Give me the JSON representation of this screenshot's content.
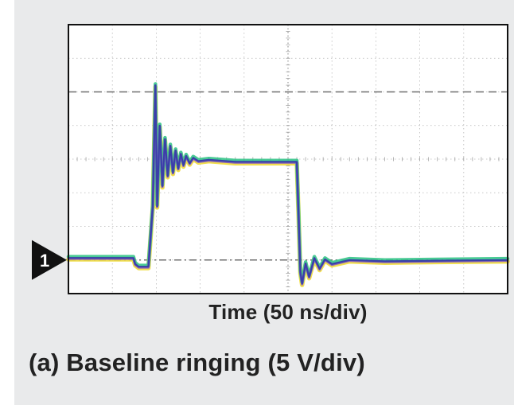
{
  "chart_data": {
    "type": "line",
    "caption": "(a) Baseline ringing (5 V/div)",
    "xlabel": "Time (50 ns/div)",
    "ylabel": "",
    "channel_marker": "1",
    "x_divisions": 10,
    "y_divisions": 8,
    "xlim": [
      0,
      500
    ],
    "ylim": [
      -5,
      35
    ],
    "grid": true,
    "reference_levels": [
      {
        "name": "",
        "value": 0,
        "style": "dash-dot"
      },
      {
        "name": "",
        "value": 25,
        "style": "dashed"
      }
    ],
    "series": [
      {
        "name": "",
        "color": "#3a3fa8",
        "x": [
          0,
          74,
          76,
          80,
          91,
          96,
          99,
          101,
          104,
          107,
          110,
          113,
          116,
          119,
          122,
          125,
          128,
          131,
          134,
          138,
          142,
          148,
          160,
          190,
          230,
          260,
          262,
          264,
          266,
          270,
          274,
          280,
          286,
          292,
          300,
          320,
          360,
          420,
          500
        ],
        "y": [
          0.3,
          0.3,
          -0.6,
          -1.0,
          -1.0,
          8,
          26,
          8,
          20,
          11,
          18,
          12.5,
          17,
          13,
          16.3,
          13.6,
          15.8,
          14.1,
          15.5,
          14.4,
          15.2,
          14.7,
          14.9,
          14.6,
          14.6,
          14.6,
          7,
          -1.8,
          -3.5,
          -0.5,
          -2.5,
          0.3,
          -1.3,
          0.1,
          -0.6,
          0,
          -0.2,
          -0.1,
          0
        ]
      }
    ]
  },
  "colors": {
    "background": "#e9eaeb",
    "plot_background": "#ffffff",
    "grid": "#b8b8b8",
    "trace_core": "#3a3fa8",
    "trace_green": "#35c48a",
    "trace_yellow": "#f0dc3c",
    "trace_purple": "#7a52c8",
    "marker": "#111111"
  }
}
